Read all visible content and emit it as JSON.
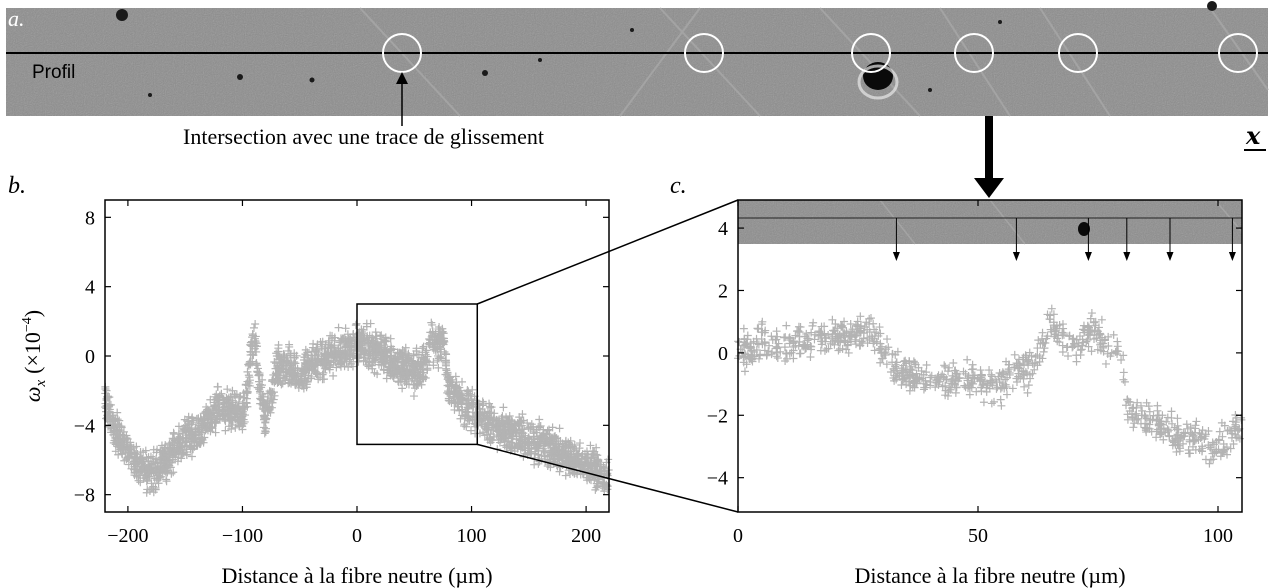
{
  "panel_a": {
    "letter": "a.",
    "profile_label": "Profil",
    "intersection_label": "Intersection avec une trace de glissement",
    "x_axis_symbol": "x"
  },
  "chart_data": [
    {
      "panel": "b.",
      "type": "scatter",
      "xlabel": "Distance à la fibre neutre (µm)",
      "ylabel": "ωx (×10−4)",
      "ylabel_main": "ω",
      "ylabel_sub": "x",
      "ylabel_unit": "(×10",
      "ylabel_exp": "−4",
      "ylabel_close": ")",
      "xlim": [
        -220,
        220
      ],
      "ylim": [
        -9,
        9
      ],
      "xticks": [
        -200,
        -100,
        0,
        100,
        200
      ],
      "xtick_labels": [
        "−200",
        "−100",
        "0",
        "100",
        "200"
      ],
      "yticks": [
        8,
        4,
        0,
        -4,
        -8
      ],
      "ytick_labels": [
        "8",
        "4",
        "0",
        "−4",
        "−8"
      ],
      "zoom_box": {
        "x": [
          0,
          105
        ],
        "y": [
          -5.1,
          3.0
        ]
      },
      "color": "#b3b3b3",
      "profile": [
        [
          -220,
          -2.5
        ],
        [
          -210,
          -4.5
        ],
        [
          -200,
          -5.5
        ],
        [
          -190,
          -6.5
        ],
        [
          -180,
          -6.8
        ],
        [
          -170,
          -6.2
        ],
        [
          -160,
          -5.5
        ],
        [
          -150,
          -4.8
        ],
        [
          -140,
          -4.5
        ],
        [
          -130,
          -3.8
        ],
        [
          -120,
          -2.8
        ],
        [
          -110,
          -3.2
        ],
        [
          -100,
          -3.6
        ],
        [
          -95,
          -1.5
        ],
        [
          -90,
          1.5
        ],
        [
          -85,
          -1.8
        ],
        [
          -80,
          -3.5
        ],
        [
          -75,
          -2.5
        ],
        [
          -70,
          -0.8
        ],
        [
          -60,
          -0.6
        ],
        [
          -50,
          -1.2
        ],
        [
          -40,
          -0.5
        ],
        [
          -30,
          -0.2
        ],
        [
          -20,
          0.2
        ],
        [
          -10,
          0.3
        ],
        [
          0,
          0.5
        ],
        [
          10,
          0.5
        ],
        [
          20,
          0.3
        ],
        [
          30,
          -0.3
        ],
        [
          40,
          -0.7
        ],
        [
          50,
          -0.9
        ],
        [
          60,
          -0.6
        ],
        [
          65,
          0.8
        ],
        [
          70,
          0.6
        ],
        [
          75,
          1.1
        ],
        [
          80,
          -1.8
        ],
        [
          90,
          -2.6
        ],
        [
          100,
          -3.2
        ],
        [
          110,
          -3.6
        ],
        [
          120,
          -4.0
        ],
        [
          140,
          -4.5
        ],
        [
          160,
          -5.0
        ],
        [
          180,
          -5.6
        ],
        [
          200,
          -6.3
        ],
        [
          220,
          -7.0
        ]
      ]
    },
    {
      "panel": "c.",
      "type": "scatter",
      "xlabel": "Distance à la fibre neutre (µm)",
      "xlim": [
        0,
        105
      ],
      "ylim": [
        -5.1,
        4.9
      ],
      "xticks": [
        0,
        50,
        100
      ],
      "xtick_labels": [
        "0",
        "50",
        "100"
      ],
      "yticks": [
        4,
        2,
        0,
        -2,
        -4
      ],
      "ytick_labels": [
        "4",
        "2",
        "0",
        "−2",
        "−4"
      ],
      "slip_trace_positions": [
        33,
        58,
        73,
        81,
        90,
        103
      ],
      "color": "#b3b3b3",
      "profile": [
        [
          0,
          0.0
        ],
        [
          5,
          0.3
        ],
        [
          10,
          0.2
        ],
        [
          15,
          0.4
        ],
        [
          20,
          0.5
        ],
        [
          25,
          0.6
        ],
        [
          28,
          0.6
        ],
        [
          30,
          0.2
        ],
        [
          32,
          -0.3
        ],
        [
          35,
          -0.7
        ],
        [
          40,
          -0.9
        ],
        [
          45,
          -0.8
        ],
        [
          50,
          -0.9
        ],
        [
          55,
          -1.0
        ],
        [
          57,
          -0.7
        ],
        [
          60,
          -0.6
        ],
        [
          63,
          0.0
        ],
        [
          65,
          0.9
        ],
        [
          67,
          0.7
        ],
        [
          70,
          0.3
        ],
        [
          72,
          0.4
        ],
        [
          74,
          0.9
        ],
        [
          76,
          0.3
        ],
        [
          78,
          0.2
        ],
        [
          80,
          0.3
        ],
        [
          81,
          -1.8
        ],
        [
          85,
          -2.2
        ],
        [
          90,
          -2.5
        ],
        [
          95,
          -2.9
        ],
        [
          100,
          -3.0
        ],
        [
          103,
          -2.6
        ],
        [
          105,
          -2.3
        ]
      ]
    }
  ]
}
